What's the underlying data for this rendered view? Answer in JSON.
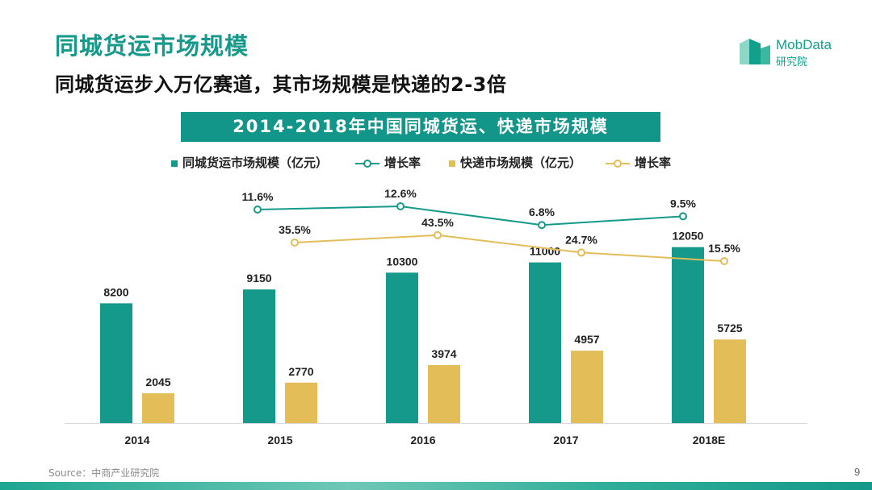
{
  "header": {
    "title": "同城货运市场规模",
    "subtitle": "同城货运步入万亿赛道，其市场规模是快递的2-3倍"
  },
  "logo": {
    "name": "MobData",
    "sub": "研究院"
  },
  "chart_banner": "2014-2018年中国同城货运、快递市场规模",
  "legend": [
    {
      "label": "同城货运市场规模（亿元）",
      "color": "#14998a",
      "kind": "bar"
    },
    {
      "label": "增长率",
      "color": "#14998a",
      "kind": "line"
    },
    {
      "label": "快递市场规模（亿元）",
      "color": "#e3bd57",
      "kind": "bar"
    },
    {
      "label": "增长率",
      "color": "#e3bd57",
      "kind": "line"
    }
  ],
  "chart_data": {
    "type": "bar",
    "title": "2014-2018年中国同城货运、快递市场规模",
    "categories": [
      "2014",
      "2015",
      "2016",
      "2017",
      "2018E"
    ],
    "series": [
      {
        "name": "同城货运市场规模（亿元）",
        "type": "bar",
        "color": "#14998a",
        "values": [
          8200,
          9150,
          10300,
          11000,
          12050
        ],
        "labels": [
          "8200",
          "9150",
          "10300",
          "11000",
          "12050"
        ]
      },
      {
        "name": "快递市场规模（亿元）",
        "type": "bar",
        "color": "#e3bd57",
        "values": [
          2045,
          2770,
          3974,
          4957,
          5725
        ],
        "labels": [
          "2045",
          "2770",
          "3974",
          "4957",
          "5725"
        ]
      },
      {
        "name": "增长率",
        "type": "line",
        "color": "#14998a",
        "values": [
          null,
          11.6,
          12.6,
          6.8,
          9.5
        ],
        "labels": [
          "",
          "11.6%",
          "12.6%",
          "6.8%",
          "9.5%"
        ]
      },
      {
        "name": "增长率",
        "type": "line",
        "color": "#e3bd57",
        "values": [
          null,
          35.5,
          43.5,
          24.7,
          15.5
        ],
        "labels": [
          "",
          "35.5%",
          "43.5%",
          "24.7%",
          "15.5%"
        ]
      }
    ],
    "ylim": [
      0,
      16000
    ],
    "xlabel": "",
    "ylabel": ""
  },
  "footer": {
    "source": "Source：中商产业研究院",
    "page": "9"
  }
}
